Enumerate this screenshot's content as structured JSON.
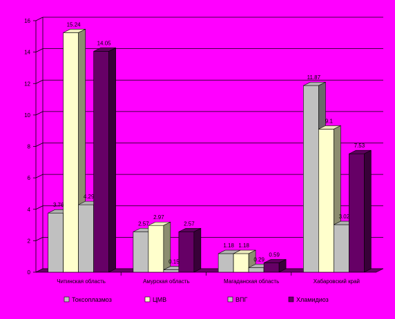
{
  "chart_data": {
    "type": "bar",
    "style": "3d-clustered-column",
    "categories": [
      "Читинская область",
      "Амурская область",
      "Магаданская область",
      "Хабаровский край"
    ],
    "series": [
      {
        "name": "Токсоплазмоз",
        "values": [
          3.76,
          2.57,
          1.18,
          11.87
        ],
        "labels": [
          "3.76",
          "2.57",
          "1.18",
          "11.87"
        ],
        "color": "#c0c0c0"
      },
      {
        "name": "ЦМВ",
        "values": [
          15.24,
          2.97,
          1.18,
          9.1
        ],
        "labels": [
          "15.24",
          "2.97",
          "1.18",
          "9.1"
        ],
        "color": "#ffffcc"
      },
      {
        "name": "ВПГ",
        "values": [
          4.29,
          0.15,
          0.29,
          3.02
        ],
        "labels": [
          "4.29",
          "0.15",
          "0.29",
          "3.02"
        ],
        "color": "#c0c0c0"
      },
      {
        "name": "Хламидиоз",
        "values": [
          14.05,
          2.57,
          0.59,
          7.53
        ],
        "labels": [
          "14.05",
          "2.57",
          "0.59",
          "7.53"
        ],
        "color": "#660066"
      }
    ],
    "ylim": [
      0,
      16
    ],
    "yticks": [
      "0",
      "2",
      "4",
      "6",
      "8",
      "10",
      "12",
      "14",
      "16"
    ],
    "grid": true,
    "legend": "bottom",
    "background": "#ff00ff"
  }
}
